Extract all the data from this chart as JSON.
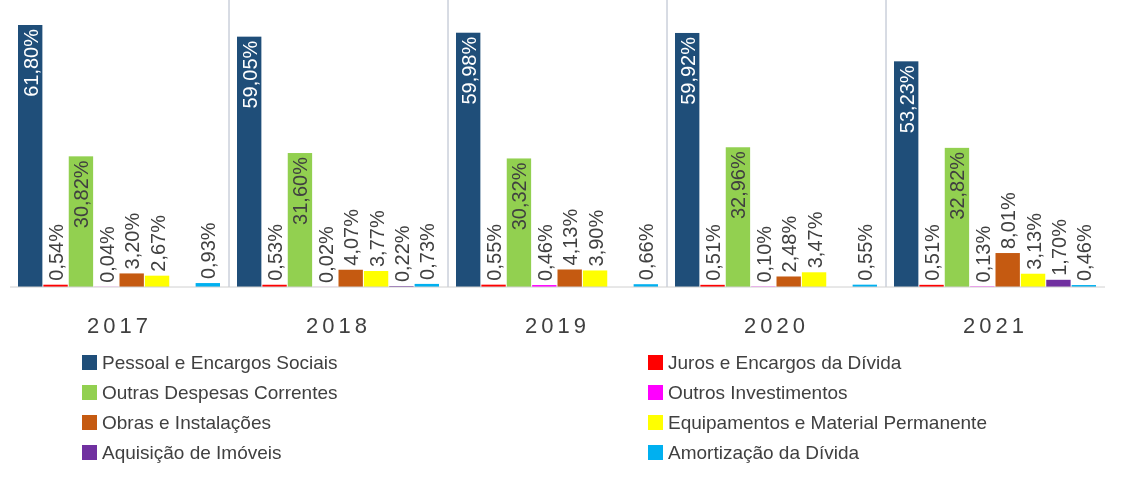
{
  "chart_data": {
    "type": "bar",
    "categories": [
      "2017",
      "2018",
      "2019",
      "2020",
      "2021"
    ],
    "tick_labels": "x",
    "legend": "bottom",
    "series": [
      {
        "name": "Pessoal e Encargos Sociais",
        "color": "#1f4e79",
        "values": [
          61.8,
          59.05,
          59.98,
          59.92,
          53.23
        ],
        "value_labels": [
          "61,80%",
          "59,05%",
          "59,98%",
          "59,92%",
          "53,23%"
        ]
      },
      {
        "name": "Juros e Encargos da Dívida",
        "color": "#ff0000",
        "values": [
          0.54,
          0.53,
          0.55,
          0.51,
          0.51
        ],
        "value_labels": [
          "0,54%",
          "0,53%",
          "0,55%",
          "0,51%",
          "0,51%"
        ]
      },
      {
        "name": "Outras Despesas Correntes",
        "color": "#92d050",
        "values": [
          30.82,
          31.6,
          30.32,
          32.96,
          32.82
        ],
        "value_labels": [
          "30,82%",
          "31,60%",
          "30,32%",
          "32,96%",
          "32,82%"
        ]
      },
      {
        "name": "Outros Investimentos",
        "color": "#ff00ff",
        "values": [
          0.04,
          0.02,
          0.46,
          0.1,
          0.13
        ],
        "value_labels": [
          "0,04%",
          "0,02%",
          "0,46%",
          "0,10%",
          "0,13%"
        ]
      },
      {
        "name": "Obras e Instalações",
        "color": "#c55a11",
        "values": [
          3.2,
          4.07,
          4.13,
          2.48,
          8.01
        ],
        "value_labels": [
          "3,20%",
          "4,07%",
          "4,13%",
          "2,48%",
          "8,01%"
        ]
      },
      {
        "name": "Equipamentos e Material Permanente",
        "color": "#ffff00",
        "values": [
          2.67,
          3.77,
          3.9,
          3.47,
          3.13
        ],
        "value_labels": [
          "2,67%",
          "3,77%",
          "3,90%",
          "3,47%",
          "3,13%"
        ]
      },
      {
        "name": "Aquisição de Imóveis",
        "color": "#7030a0",
        "values": [
          null,
          0.22,
          null,
          null,
          1.7
        ],
        "value_labels": [
          null,
          "0,22%",
          null,
          null,
          "1,70%"
        ]
      },
      {
        "name": "Amortização da Dívida",
        "color": "#00b0f0",
        "values": [
          0.93,
          0.73,
          0.66,
          0.55,
          0.46
        ],
        "value_labels": [
          "0,93%",
          "0,73%",
          "0,66%",
          "0,55%",
          "0,46%"
        ]
      }
    ]
  }
}
